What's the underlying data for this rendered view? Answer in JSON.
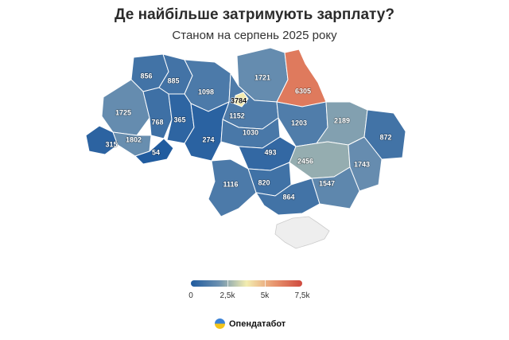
{
  "title": "Де найбільше затримують зарплату?",
  "subtitle": "Станом на серпень 2025 року",
  "legend": {
    "min_label": "0",
    "tick1_label": "2,5k",
    "tick2_label": "5k",
    "max_label": "7,5k",
    "scale_min": 0,
    "scale_max": 7500,
    "colors": [
      "#1f5a9e",
      "#6b90b0",
      "#f3edb0",
      "#e8956e",
      "#cf4a3f"
    ]
  },
  "brand": {
    "name": "Опендатабот"
  },
  "colors": {
    "occupied_crimea": "#eeeeee"
  },
  "regions": [
    {
      "name": "Volyn",
      "value": 856
    },
    {
      "name": "Rivne",
      "value": 885
    },
    {
      "name": "Zhytomyr",
      "value": 1098
    },
    {
      "name": "Chernihiv",
      "value": 1721
    },
    {
      "name": "Sumy",
      "value": 6305
    },
    {
      "name": "Kyiv city",
      "value": 3784
    },
    {
      "name": "Kyiv oblast",
      "value": 1152
    },
    {
      "name": "Lviv",
      "value": 1725
    },
    {
      "name": "Ternopil",
      "value": 768
    },
    {
      "name": "Khmelnytskyi",
      "value": 365
    },
    {
      "name": "Poltava",
      "value": 1203
    },
    {
      "name": "Kharkiv",
      "value": 2189
    },
    {
      "name": "Luhansk",
      "value": 872
    },
    {
      "name": "Zakarpattia",
      "value": 315
    },
    {
      "name": "Ivano-Frankivsk",
      "value": 1802
    },
    {
      "name": "Chernivtsi",
      "value": 54
    },
    {
      "name": "Vinnytsia",
      "value": 274
    },
    {
      "name": "Cherkasy",
      "value": 1030
    },
    {
      "name": "Kirovohrad",
      "value": 493
    },
    {
      "name": "Dnipropetrovsk",
      "value": 2456
    },
    {
      "name": "Donetsk",
      "value": 1743
    },
    {
      "name": "Mykolaiv",
      "value": 820
    },
    {
      "name": "Odesa",
      "value": 1116
    },
    {
      "name": "Kherson",
      "value": 864
    },
    {
      "name": "Zaporizhzhia",
      "value": 1547
    }
  ]
}
